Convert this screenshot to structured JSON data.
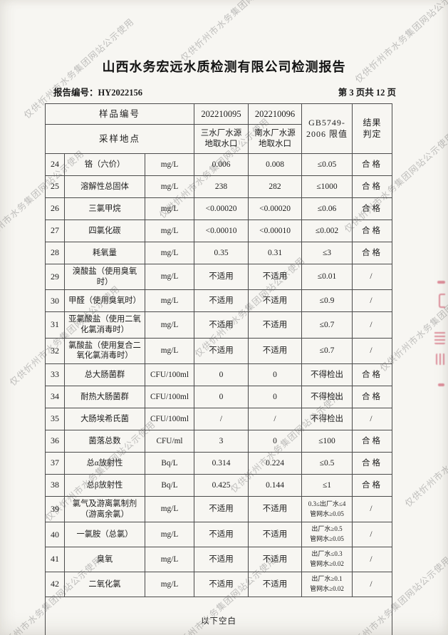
{
  "watermark": {
    "text": "仅供忻州市水务集团网站公示使用",
    "color": "#7a7a7a"
  },
  "stamp": {
    "name": "red-stamp-fragment",
    "color": "#cf4f66"
  },
  "header": {
    "title": "山西水务宏远水质检测有限公司检测报告",
    "report_no_label": "报告编号：",
    "report_no": "HY2022156",
    "page_info": "第 3 页共 12 页"
  },
  "table": {
    "header": {
      "sample_no_label": "样品编号",
      "sample_location_label": "采样地点",
      "sample1_no": "202210095",
      "sample2_no": "202210096",
      "sample1_location": "三水厂水源\n地取水口",
      "sample2_location": "南水厂水源\n地取水口",
      "limit_header": "GB5749-\n2006 限值",
      "result_header": "结果\n判定"
    },
    "rows": [
      {
        "no": "24",
        "name": "铬（六价）",
        "unit": "mg/L",
        "v1": "0.006",
        "v2": "0.008",
        "limit": "≤0.05",
        "result": "合格"
      },
      {
        "no": "25",
        "name": "溶解性总固体",
        "unit": "mg/L",
        "v1": "238",
        "v2": "282",
        "limit": "≤1000",
        "result": "合格"
      },
      {
        "no": "26",
        "name": "三氯甲烷",
        "unit": "mg/L",
        "v1": "<0.00020",
        "v2": "<0.00020",
        "limit": "≤0.06",
        "result": "合格"
      },
      {
        "no": "27",
        "name": "四氯化碳",
        "unit": "mg/L",
        "v1": "<0.00010",
        "v2": "<0.00010",
        "limit": "≤0.002",
        "result": "合格"
      },
      {
        "no": "28",
        "name": "耗氧量",
        "unit": "mg/L",
        "v1": "0.35",
        "v2": "0.31",
        "limit": "≤3",
        "result": "合格"
      },
      {
        "no": "29",
        "name": "溴酸盐（使用臭氧\n时）",
        "unit": "mg/L",
        "v1": "不适用",
        "v2": "不适用",
        "limit": "≤0.01",
        "result": "/"
      },
      {
        "no": "30",
        "name": "甲醛（使用臭氧时）",
        "unit": "mg/L",
        "v1": "不适用",
        "v2": "不适用",
        "limit": "≤0.9",
        "result": "/"
      },
      {
        "no": "31",
        "name": "亚氯酸盐（使用二氧\n化氯消毒时）",
        "unit": "mg/L",
        "v1": "不适用",
        "v2": "不适用",
        "limit": "≤0.7",
        "result": "/"
      },
      {
        "no": "32",
        "name": "氯酸盐（使用复合二\n氧化氯消毒时）",
        "unit": "mg/L",
        "v1": "不适用",
        "v2": "不适用",
        "limit": "≤0.7",
        "result": "/"
      },
      {
        "no": "33",
        "name": "总大肠菌群",
        "unit": "CFU/100ml",
        "v1": "0",
        "v2": "0",
        "limit": "不得检出",
        "result": "合格"
      },
      {
        "no": "34",
        "name": "耐热大肠菌群",
        "unit": "CFU/100ml",
        "v1": "0",
        "v2": "0",
        "limit": "不得检出",
        "result": "合格"
      },
      {
        "no": "35",
        "name": "大肠埃希氏菌",
        "unit": "CFU/100ml",
        "v1": "/",
        "v2": "/",
        "limit": "不得检出",
        "result": "/"
      },
      {
        "no": "36",
        "name": "菌落总数",
        "unit": "CFU/ml",
        "v1": "3",
        "v2": "0",
        "limit": "≤100",
        "result": "合格"
      },
      {
        "no": "37",
        "name": "总α放射性",
        "unit": "Bq/L",
        "v1": "0.314",
        "v2": "0.224",
        "limit": "≤0.5",
        "result": "合格"
      },
      {
        "no": "38",
        "name": "总β放射性",
        "unit": "Bq/L",
        "v1": "0.425",
        "v2": "0.144",
        "limit": "≤1",
        "result": "合格"
      },
      {
        "no": "39",
        "name": "氯气及游离氯制剂\n（游离余氯）",
        "unit": "mg/L",
        "v1": "不适用",
        "v2": "不适用",
        "limit": "0.3≤出厂水≤4\n管网水≥0.05",
        "result": "/"
      },
      {
        "no": "40",
        "name": "一氯胺（总氯）",
        "unit": "mg/L",
        "v1": "不适用",
        "v2": "不适用",
        "limit": "出厂水≥0.5\n管网水≥0.05",
        "result": "/"
      },
      {
        "no": "41",
        "name": "臭氧",
        "unit": "mg/L",
        "v1": "不适用",
        "v2": "不适用",
        "limit": "出厂水≤0.3\n管网水≥0.02",
        "result": "/"
      },
      {
        "no": "42",
        "name": "二氧化氯",
        "unit": "mg/L",
        "v1": "不适用",
        "v2": "不适用",
        "limit": "出厂水≥0.1\n管网水≥0.02",
        "result": "/"
      }
    ],
    "footer_note": "以下空白"
  }
}
